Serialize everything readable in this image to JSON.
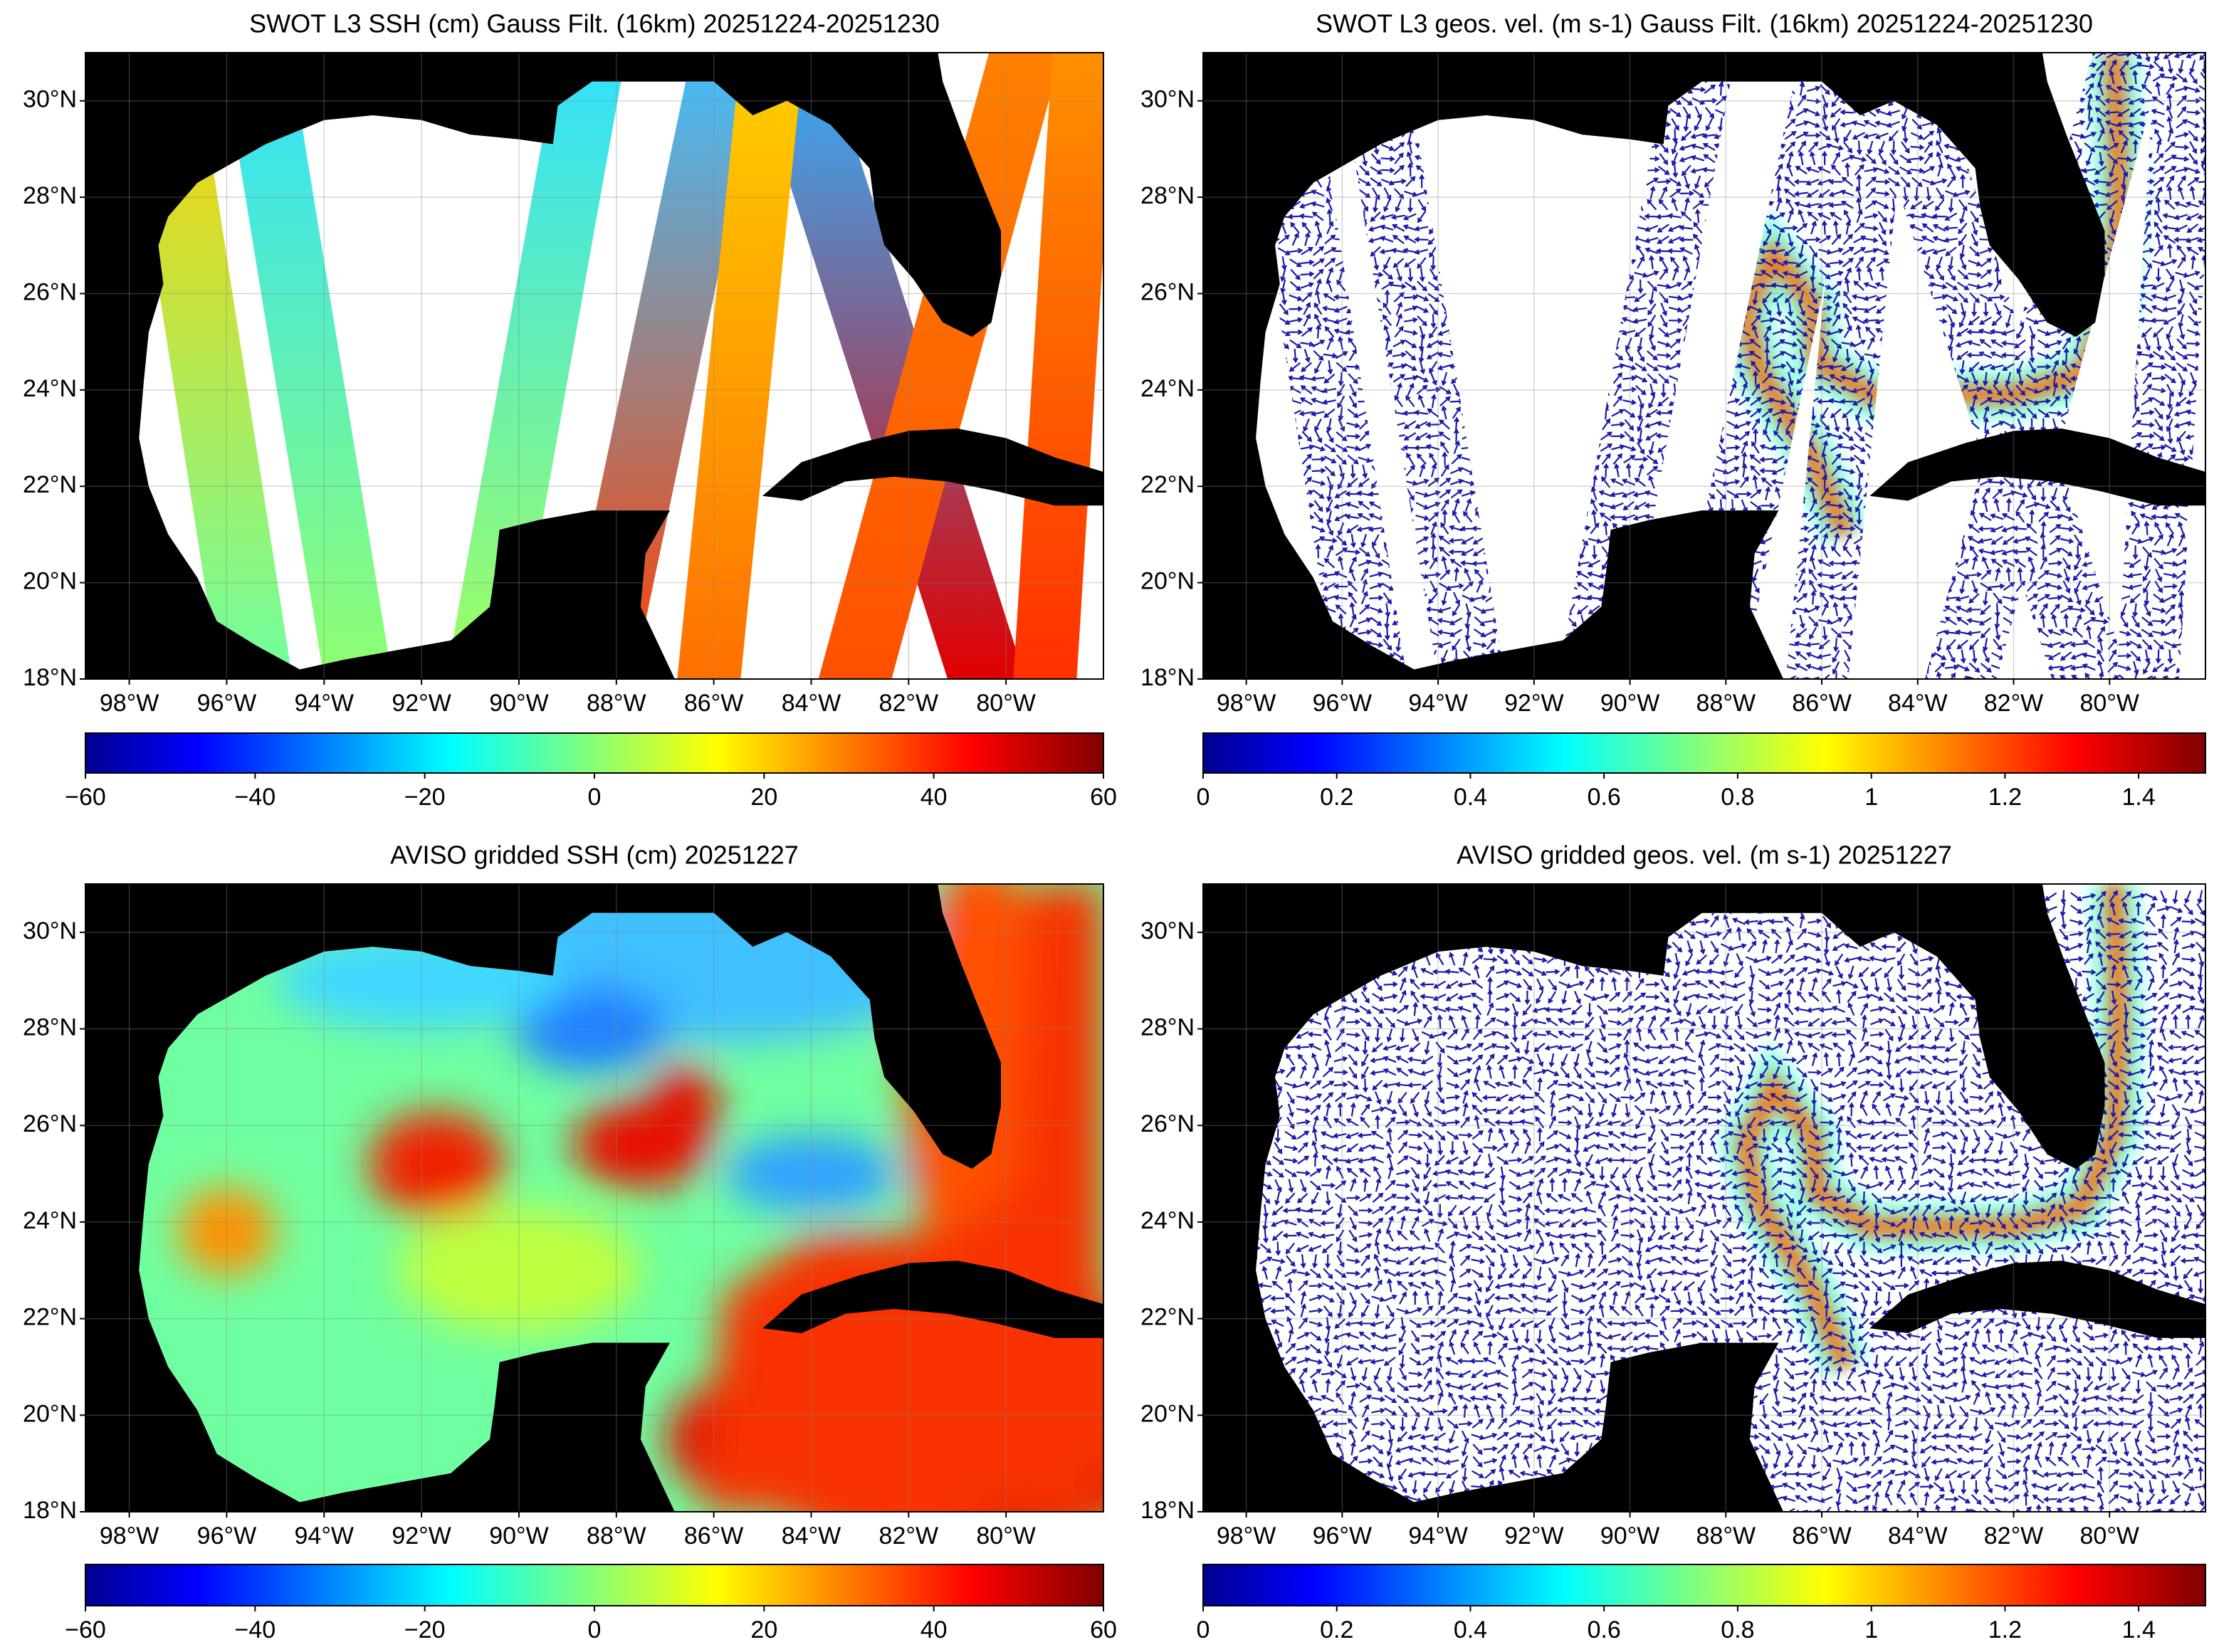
{
  "chart_data": [
    {
      "type": "map",
      "title": "SWOT L3 SSH (cm) Gauss Filt. (16km) 20251224-20251230",
      "xlim": [
        -98.9,
        -78
      ],
      "ylim": [
        18,
        31
      ],
      "xticks": [
        {
          "value": -98,
          "label": "98°W"
        },
        {
          "value": -96,
          "label": "96°W"
        },
        {
          "value": -94,
          "label": "94°W"
        },
        {
          "value": -92,
          "label": "92°W"
        },
        {
          "value": -90,
          "label": "90°W"
        },
        {
          "value": -88,
          "label": "88°W"
        },
        {
          "value": -86,
          "label": "86°W"
        },
        {
          "value": -84,
          "label": "84°W"
        },
        {
          "value": -82,
          "label": "82°W"
        },
        {
          "value": -80,
          "label": "80°W"
        }
      ],
      "yticks": [
        {
          "value": 18,
          "label": "18°N"
        },
        {
          "value": 20,
          "label": "20°N"
        },
        {
          "value": 22,
          "label": "22°N"
        },
        {
          "value": 24,
          "label": "24°N"
        },
        {
          "value": 26,
          "label": "26°N"
        },
        {
          "value": 28,
          "label": "28°N"
        },
        {
          "value": 30,
          "label": "30°N"
        }
      ],
      "grid": true,
      "colormap": "jet",
      "colorbar": {
        "lim": [
          -60,
          60
        ],
        "ticks": [
          {
            "value": -60,
            "label": "−60"
          },
          {
            "value": -40,
            "label": "−40"
          },
          {
            "value": -20,
            "label": "−20"
          },
          0,
          20,
          40,
          60
        ]
      }
    },
    {
      "type": "map",
      "title": "SWOT L3 geos. vel. (m s-1) Gauss Filt. (16km) 20251224-20251230",
      "xlim": [
        -98.9,
        -78
      ],
      "ylim": [
        18,
        31
      ],
      "xticks": [
        {
          "value": -98,
          "label": "98°W"
        },
        {
          "value": -96,
          "label": "96°W"
        },
        {
          "value": -94,
          "label": "94°W"
        },
        {
          "value": -92,
          "label": "92°W"
        },
        {
          "value": -90,
          "label": "90°W"
        },
        {
          "value": -88,
          "label": "88°W"
        },
        {
          "value": -86,
          "label": "86°W"
        },
        {
          "value": -84,
          "label": "84°W"
        },
        {
          "value": -82,
          "label": "82°W"
        },
        {
          "value": -80,
          "label": "80°W"
        }
      ],
      "yticks": [
        {
          "value": 18,
          "label": "18°N"
        },
        {
          "value": 20,
          "label": "20°N"
        },
        {
          "value": 22,
          "label": "22°N"
        },
        {
          "value": 24,
          "label": "24°N"
        },
        {
          "value": 26,
          "label": "26°N"
        },
        {
          "value": 28,
          "label": "28°N"
        },
        {
          "value": 30,
          "label": "30°N"
        }
      ],
      "grid": true,
      "colormap": "jet",
      "colorbar": {
        "lim": [
          0,
          1.5
        ],
        "ticks": [
          0,
          0.2,
          0.4,
          0.6,
          0.8,
          1,
          1.2,
          1.4
        ]
      }
    },
    {
      "type": "map",
      "title": "AVISO gridded SSH (cm) 20251227",
      "xlim": [
        -98.9,
        -78
      ],
      "ylim": [
        18,
        31
      ],
      "xticks": [
        {
          "value": -98,
          "label": "98°W"
        },
        {
          "value": -96,
          "label": "96°W"
        },
        {
          "value": -94,
          "label": "94°W"
        },
        {
          "value": -92,
          "label": "92°W"
        },
        {
          "value": -90,
          "label": "90°W"
        },
        {
          "value": -88,
          "label": "88°W"
        },
        {
          "value": -86,
          "label": "86°W"
        },
        {
          "value": -84,
          "label": "84°W"
        },
        {
          "value": -82,
          "label": "82°W"
        },
        {
          "value": -80,
          "label": "80°W"
        }
      ],
      "yticks": [
        {
          "value": 18,
          "label": "18°N"
        },
        {
          "value": 20,
          "label": "20°N"
        },
        {
          "value": 22,
          "label": "22°N"
        },
        {
          "value": 24,
          "label": "24°N"
        },
        {
          "value": 26,
          "label": "26°N"
        },
        {
          "value": 28,
          "label": "28°N"
        },
        {
          "value": 30,
          "label": "30°N"
        }
      ],
      "grid": true,
      "colormap": "jet",
      "colorbar": {
        "lim": [
          -60,
          60
        ],
        "ticks": [
          {
            "value": -60,
            "label": "−60"
          },
          {
            "value": -40,
            "label": "−40"
          },
          {
            "value": -20,
            "label": "−20"
          },
          0,
          20,
          40,
          60
        ]
      }
    },
    {
      "type": "map",
      "title": "AVISO gridded geos. vel. (m s-1)  20251227",
      "xlim": [
        -98.9,
        -78
      ],
      "ylim": [
        18,
        31
      ],
      "xticks": [
        {
          "value": -98,
          "label": "98°W"
        },
        {
          "value": -96,
          "label": "96°W"
        },
        {
          "value": -94,
          "label": "94°W"
        },
        {
          "value": -92,
          "label": "92°W"
        },
        {
          "value": -90,
          "label": "90°W"
        },
        {
          "value": -88,
          "label": "88°W"
        },
        {
          "value": -86,
          "label": "86°W"
        },
        {
          "value": -84,
          "label": "84°W"
        },
        {
          "value": -82,
          "label": "82°W"
        },
        {
          "value": -80,
          "label": "80°W"
        }
      ],
      "yticks": [
        {
          "value": 18,
          "label": "18°N"
        },
        {
          "value": 20,
          "label": "20°N"
        },
        {
          "value": 22,
          "label": "22°N"
        },
        {
          "value": 24,
          "label": "24°N"
        },
        {
          "value": 26,
          "label": "26°N"
        },
        {
          "value": 28,
          "label": "28°N"
        },
        {
          "value": 30,
          "label": "30°N"
        }
      ],
      "grid": true,
      "colormap": "jet",
      "colorbar": {
        "lim": [
          0,
          1.5
        ],
        "ticks": [
          0,
          0.2,
          0.4,
          0.6,
          0.8,
          1,
          1.2,
          1.4
        ]
      }
    }
  ]
}
